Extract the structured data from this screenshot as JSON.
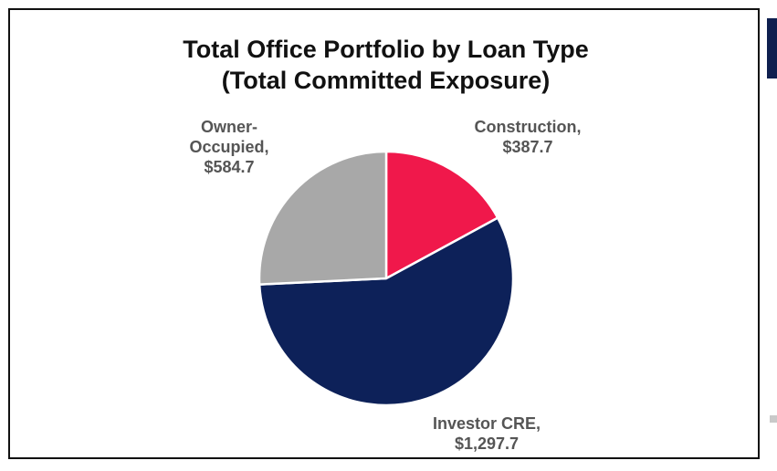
{
  "chart_data": {
    "type": "pie",
    "title": [
      "Total Office Portfolio by Loan Type",
      "(Total Committed Exposure)"
    ],
    "slices": [
      {
        "name": "Construction",
        "value": 387.7,
        "display": "$387.7",
        "label_lines": [
          "Construction,",
          "$387.7"
        ],
        "color": "#f0184b"
      },
      {
        "name": "Investor CRE",
        "value": 1297.7,
        "display": "$1,297.7",
        "label_lines": [
          "Investor CRE,",
          "$1,297.7"
        ],
        "color": "#0d2159"
      },
      {
        "name": "Owner-Occupied",
        "value": 584.7,
        "display": "$584.7",
        "label_lines": [
          "Owner-",
          "Occupied,",
          "$584.7"
        ],
        "color": "#a8a8a8"
      }
    ],
    "start_angle": "12 o'clock",
    "direction": "clockwise",
    "legend": "none"
  }
}
